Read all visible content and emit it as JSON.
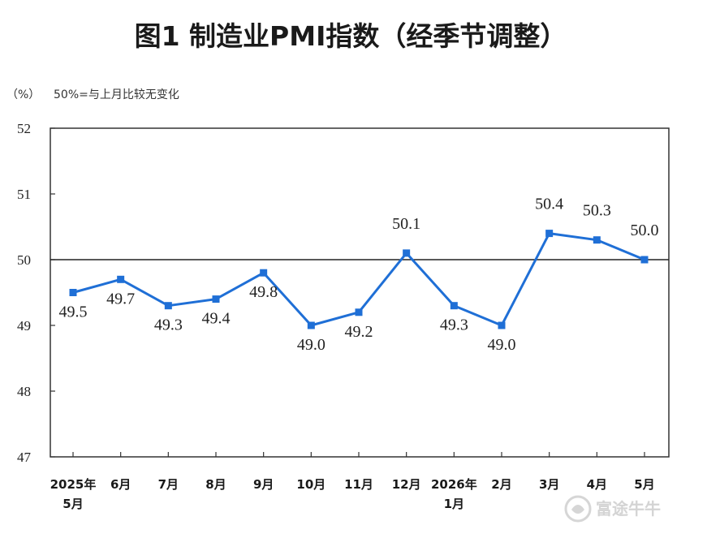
{
  "chart_data": {
    "type": "line",
    "title": "图1 制造业PMI指数（经季节调整）",
    "unit_label": "（%）",
    "note": "50%=与上月比较无变化",
    "categories": [
      [
        "2025年",
        "5月"
      ],
      [
        "6月"
      ],
      [
        "7月"
      ],
      [
        "8月"
      ],
      [
        "9月"
      ],
      [
        "10月"
      ],
      [
        "11月"
      ],
      [
        "12月"
      ],
      [
        "2026年",
        "1月"
      ],
      [
        "2月"
      ],
      [
        "3月"
      ],
      [
        "4月"
      ],
      [
        "5月"
      ]
    ],
    "series": [
      {
        "values": [
          49.5,
          49.7,
          49.3,
          49.4,
          49.8,
          49.0,
          49.2,
          50.1,
          49.3,
          49.0,
          50.4,
          50.3,
          50.0
        ],
        "labels": [
          "49.5",
          "49.7",
          "49.3",
          "49.4",
          "49.8",
          "49.0",
          "49.2",
          "50.1",
          "49.3",
          "49.0",
          "50.4",
          "50.3",
          "50.0"
        ],
        "label_position": [
          "below",
          "below",
          "below",
          "below",
          "below",
          "below",
          "below",
          "above",
          "below",
          "below",
          "above",
          "above",
          "above"
        ],
        "color": "#1f6fd6"
      }
    ],
    "yticks": [
      "52",
      "51",
      "50",
      "49",
      "48",
      "47"
    ],
    "ylim": [
      47,
      52
    ],
    "reference_line": 50,
    "grid": false,
    "legend": "none"
  },
  "watermark": "富途牛牛"
}
